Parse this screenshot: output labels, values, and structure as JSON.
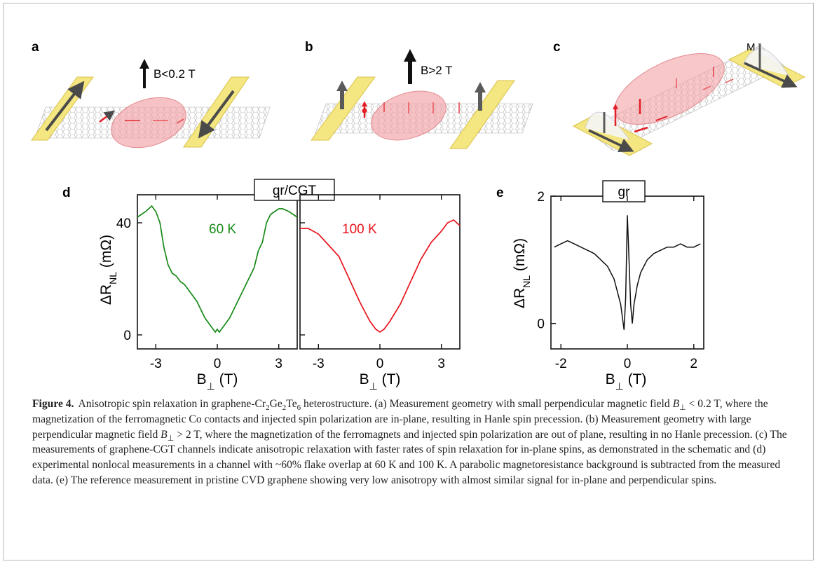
{
  "figure": {
    "panel_labels": [
      "a",
      "b",
      "c",
      "d",
      "e"
    ],
    "schematic": {
      "a_field": "B<0.2 T",
      "b_field": "B>2 T",
      "c_magnet": "M"
    },
    "colors": {
      "green": "#178a17",
      "red": "#e8141c",
      "black": "#111111",
      "contact_yellow": "#f4e680",
      "spin_red": "#e41e26",
      "ellipse_pink": "#f2a2a6"
    }
  },
  "chart_data": [
    {
      "id": "d-left",
      "type": "line",
      "panel": "d",
      "title": "gr/CGT",
      "annotation": "60 K",
      "color": "#178a17",
      "xlabel_main": "B",
      "xlabel_sub": "⊥",
      "xlabel_unit": " (T)",
      "ylabel_main": "ΔR",
      "ylabel_sub": "NL",
      "ylabel_unit": " (mΩ)",
      "xlim": [
        -3.9,
        3.9
      ],
      "ylim": [
        -5,
        50
      ],
      "xticks": [
        "-3",
        "0",
        "3"
      ],
      "xtick_values": [
        -3,
        0,
        3
      ],
      "yticks": [
        "0",
        "40"
      ],
      "ytick_values": [
        0,
        40
      ],
      "x": [
        -3.9,
        -3.5,
        -3.2,
        -3.0,
        -2.8,
        -2.6,
        -2.4,
        -2.2,
        -2.0,
        -1.8,
        -1.6,
        -1.4,
        -1.2,
        -1.0,
        -0.8,
        -0.6,
        -0.4,
        -0.2,
        -0.1,
        0.0,
        0.1,
        0.2,
        0.4,
        0.6,
        0.8,
        1.0,
        1.2,
        1.4,
        1.6,
        1.8,
        2.0,
        2.2,
        2.4,
        2.6,
        2.8,
        3.0,
        3.2,
        3.5,
        3.9
      ],
      "y": [
        42,
        44,
        46,
        44,
        40,
        31,
        25,
        22,
        21,
        19,
        18,
        16,
        14,
        12,
        9,
        6,
        4,
        2,
        1,
        2,
        1,
        2,
        4,
        6,
        9,
        12,
        15,
        18,
        21,
        24,
        30,
        33,
        40,
        43,
        44,
        45,
        45,
        44,
        42
      ]
    },
    {
      "id": "d-right",
      "type": "line",
      "panel": "d",
      "annotation": "100 K",
      "color": "#e8141c",
      "xlabel_main": "B",
      "xlabel_sub": "⊥",
      "xlabel_unit": " (T)",
      "xlim": [
        -3.9,
        3.9
      ],
      "ylim": [
        -5,
        50
      ],
      "xticks": [
        "-3",
        "0",
        "3"
      ],
      "xtick_values": [
        -3,
        0,
        3
      ],
      "x": [
        -3.9,
        -3.5,
        -3.0,
        -2.5,
        -2.0,
        -1.5,
        -1.0,
        -0.5,
        -0.2,
        0.0,
        0.2,
        0.5,
        1.0,
        1.5,
        2.0,
        2.5,
        3.0,
        3.3,
        3.6,
        3.9
      ],
      "y": [
        38,
        38,
        36,
        32,
        28,
        20,
        12,
        5,
        2,
        1,
        2,
        5,
        11,
        19,
        27,
        33,
        37,
        40,
        41,
        39
      ]
    },
    {
      "id": "e",
      "type": "line",
      "panel": "e",
      "title": "gr",
      "color": "#111111",
      "xlabel_main": "B",
      "xlabel_sub": "⊥",
      "xlabel_unit": " (T)",
      "ylabel_main": "ΔR",
      "ylabel_sub": "NL",
      "ylabel_unit": " (mΩ)",
      "xlim": [
        -2.3,
        2.3
      ],
      "ylim": [
        -0.4,
        2.0
      ],
      "xticks": [
        "-2",
        "0",
        "2"
      ],
      "xtick_values": [
        -2,
        0,
        2
      ],
      "yticks": [
        "0",
        "2"
      ],
      "ytick_values": [
        0,
        2
      ],
      "x": [
        -2.2,
        -2.0,
        -1.8,
        -1.6,
        -1.4,
        -1.2,
        -1.0,
        -0.8,
        -0.6,
        -0.5,
        -0.4,
        -0.3,
        -0.2,
        -0.15,
        -0.1,
        -0.05,
        0.0,
        0.05,
        0.1,
        0.15,
        0.2,
        0.3,
        0.4,
        0.5,
        0.6,
        0.8,
        1.0,
        1.2,
        1.4,
        1.6,
        1.8,
        2.0,
        2.2
      ],
      "y": [
        1.2,
        1.25,
        1.3,
        1.25,
        1.2,
        1.15,
        1.1,
        1.0,
        0.9,
        0.8,
        0.7,
        0.5,
        0.3,
        0.1,
        -0.1,
        0.4,
        1.7,
        1.0,
        0.3,
        0.0,
        0.3,
        0.6,
        0.8,
        0.9,
        1.0,
        1.1,
        1.15,
        1.2,
        1.2,
        1.25,
        1.2,
        1.2,
        1.25
      ]
    }
  ],
  "caption": {
    "lead": "Figure 4.",
    "t1": "Anisotropic spin relaxation in graphene-Cr",
    "s1": "2",
    "t2": "Ge",
    "s2": "2",
    "t3": "Te",
    "s3": "6",
    "t4": " heterostructure. (a) Measurement geometry with small perpendicular magnetic field ",
    "v1": "B",
    "vs1": "⊥",
    "t5": " < 0.2 T, where the magnetization of the ferromagnetic Co contacts and injected spin polarization are in-plane, resulting in Hanle spin precession. (b) Measurement geometry with large perpendicular magnetic field ",
    "v2": "B",
    "vs2": "⊥",
    "t6": " > 2 T, where the magnetization of the ferromagnets and injected spin polarization are out of plane, resulting in no Hanle precession. (c) The measurements of graphene-CGT channels indicate anisotropic relaxation with faster rates of spin relaxation for in-plane spins, as demonstrated in the schematic and (d) experimental nonlocal measurements in a channel with ~60% flake overlap at 60 K and 100 K. A parabolic magnetoresistance background is subtracted from the measured data. (e) The reference measurement in pristine CVD graphene showing very low anisotropy with almost similar signal for in-plane and perpendicular spins."
  }
}
